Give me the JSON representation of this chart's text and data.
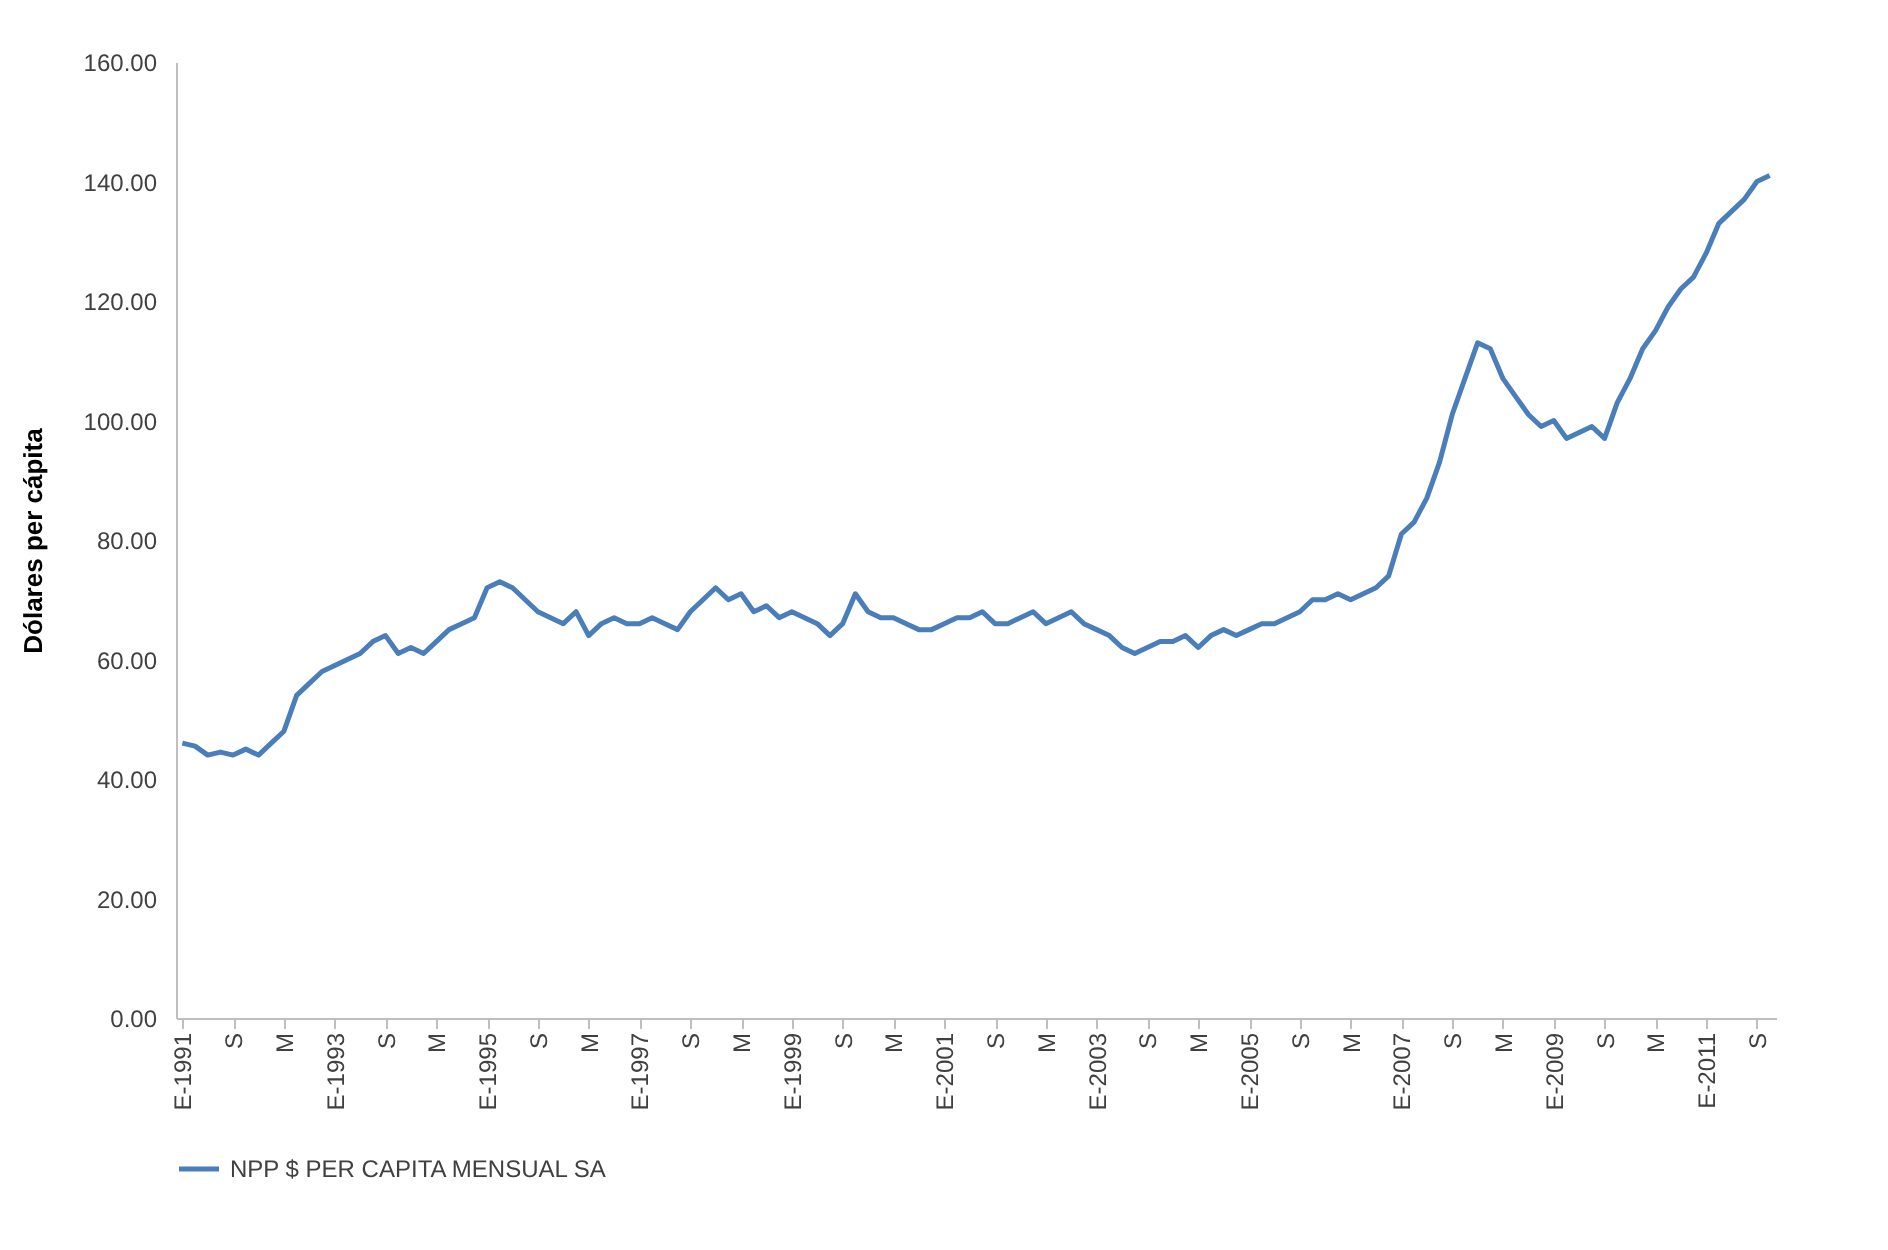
{
  "chart_data": {
    "type": "line",
    "ylabel": "Dólares per cápita",
    "categories": [
      "E-1991",
      null,
      null,
      null,
      "S",
      null,
      null,
      null,
      "M",
      null,
      null,
      null,
      "E-1993",
      null,
      null,
      null,
      "S",
      null,
      null,
      null,
      "M",
      null,
      null,
      null,
      "E-1995",
      null,
      null,
      null,
      "S",
      null,
      null,
      null,
      "M",
      null,
      null,
      null,
      "E-1997",
      null,
      null,
      null,
      "S",
      null,
      null,
      null,
      "M",
      null,
      null,
      null,
      "E-1999",
      null,
      null,
      null,
      "S",
      null,
      null,
      null,
      "M",
      null,
      null,
      null,
      "E-2001",
      null,
      null,
      null,
      "S",
      null,
      null,
      null,
      "M",
      null,
      null,
      null,
      "E-2003",
      null,
      null,
      null,
      "S",
      null,
      null,
      null,
      "M",
      null,
      null,
      null,
      "E-2005",
      null,
      null,
      null,
      "S",
      null,
      null,
      null,
      "M",
      null,
      null,
      null,
      "E-2007",
      null,
      null,
      null,
      "S",
      null,
      null,
      null,
      "M",
      null,
      null,
      null,
      "E-2009",
      null,
      null,
      null,
      "S",
      null,
      null,
      null,
      "M",
      null,
      null,
      null,
      "E-2011",
      null,
      null,
      null,
      "S",
      null
    ],
    "series": [
      {
        "name": "NPP $ PER CAPITA MENSUAL SA",
        "color": "#4a7ebb",
        "values": [
          46,
          45.5,
          44,
          44.5,
          44,
          45,
          44,
          46,
          48,
          54,
          56,
          58,
          59,
          60,
          61,
          63,
          64,
          61,
          62,
          61,
          63,
          65,
          66,
          67,
          72,
          73,
          72,
          70,
          68,
          67,
          66,
          68,
          64,
          66,
          67,
          66,
          66,
          67,
          66,
          65,
          68,
          70,
          72,
          70,
          71,
          68,
          69,
          67,
          68,
          67,
          66,
          64,
          66,
          71,
          68,
          67,
          67,
          66,
          65,
          65,
          66,
          67,
          67,
          68,
          66,
          66,
          67,
          68,
          66,
          67,
          68,
          66,
          65,
          64,
          62,
          61,
          62,
          63,
          63,
          64,
          62,
          64,
          65,
          64,
          65,
          66,
          66,
          67,
          68,
          70,
          70,
          71,
          70,
          71,
          72,
          74,
          81,
          83,
          87,
          93,
          101,
          107,
          113,
          112,
          107,
          104,
          101,
          99,
          100,
          97,
          98,
          99,
          97,
          103,
          107,
          112,
          115,
          119,
          122,
          124,
          128,
          133,
          135,
          137,
          140,
          141
        ]
      }
    ],
    "ylim": [
      0,
      160
    ],
    "yticks": [
      {
        "value": 0,
        "label": "0.00"
      },
      {
        "value": 20,
        "label": "20.00"
      },
      {
        "value": 40,
        "label": "40.00"
      },
      {
        "value": 60,
        "label": "60.00"
      },
      {
        "value": 80,
        "label": "80.00"
      },
      {
        "value": 100,
        "label": "100.00"
      },
      {
        "value": 120,
        "label": "120.00"
      },
      {
        "value": 140,
        "label": "140.00"
      },
      {
        "value": 160,
        "label": "160.00"
      }
    ],
    "grid": false,
    "legend": "bottom",
    "marker": "none",
    "line_style": "solid"
  }
}
